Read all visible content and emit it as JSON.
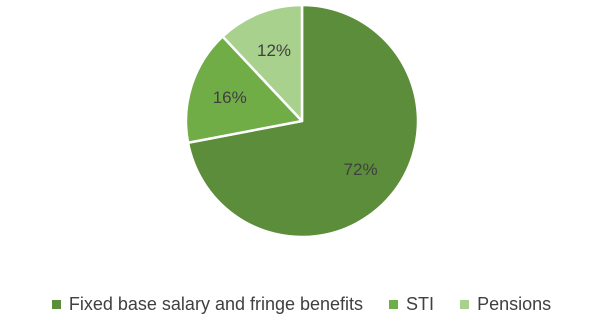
{
  "chart_data": {
    "type": "pie",
    "categories": [
      "Fixed base salary and fringe benefits",
      "STI",
      "Pensions"
    ],
    "values": [
      72,
      16,
      12
    ],
    "labels": [
      "72%",
      "16%",
      "12%"
    ],
    "colors": [
      "#5b8d3a",
      "#70ad47",
      "#a9d18e"
    ],
    "title": "",
    "legend_position": "bottom",
    "start_angle_deg": 0,
    "direction": "clockwise"
  }
}
